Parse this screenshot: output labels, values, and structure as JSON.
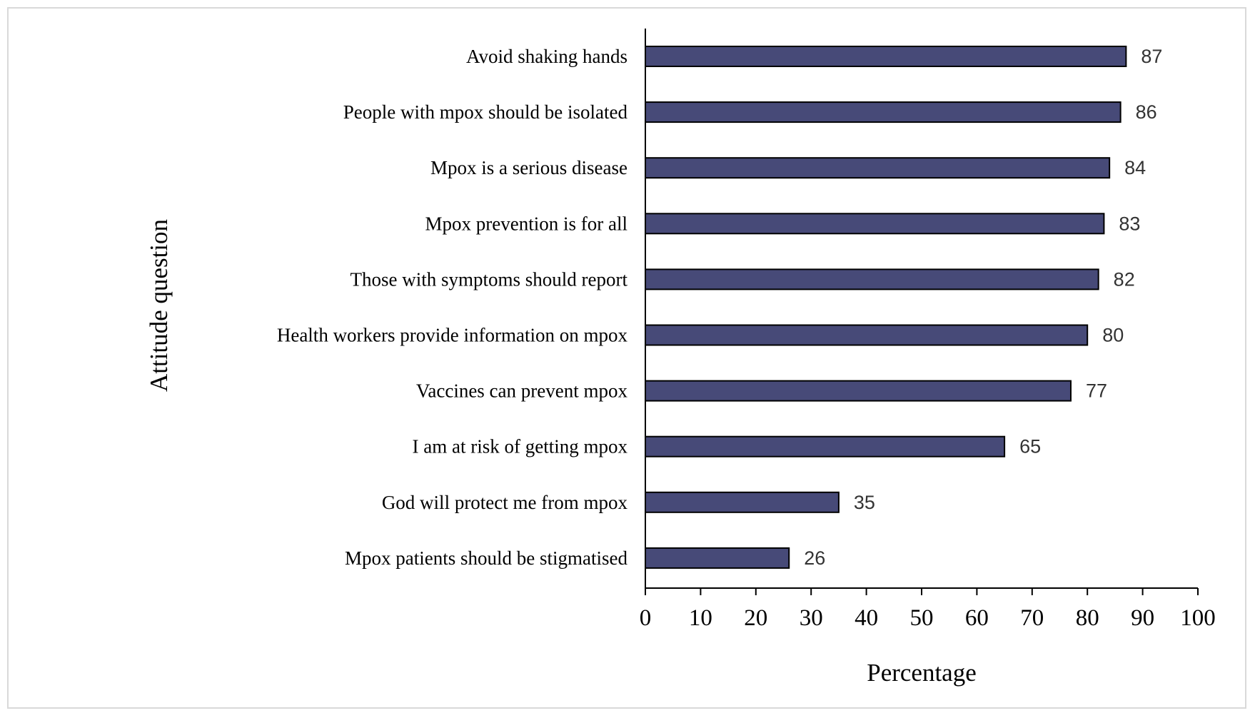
{
  "chart_data": {
    "type": "bar",
    "orientation": "horizontal",
    "title": "",
    "xlabel": "Percentage",
    "ylabel": "Attitude question",
    "xlim": [
      0,
      100
    ],
    "x_ticks": [
      0,
      10,
      20,
      30,
      40,
      50,
      60,
      70,
      80,
      90,
      100
    ],
    "grid": false,
    "legend": "none",
    "bar_color": "#474A78",
    "bar_edge_color": "#000000",
    "categories": [
      "Avoid shaking hands",
      "People with mpox should be isolated",
      "Mpox is a serious disease",
      "Mpox prevention is for all",
      "Those with symptoms should report",
      "Health workers provide information on mpox",
      "Vaccines  can prevent mpox",
      "I am at risk of getting mpox",
      "God will protect me from mpox",
      "Mpox patients should be stigmatised"
    ],
    "values": [
      87,
      86,
      84,
      83,
      82,
      80,
      77,
      65,
      35,
      26
    ],
    "data_labels": [
      "87",
      "86",
      "84",
      "83",
      "82",
      "80",
      "77",
      "65",
      "35",
      "26"
    ]
  }
}
